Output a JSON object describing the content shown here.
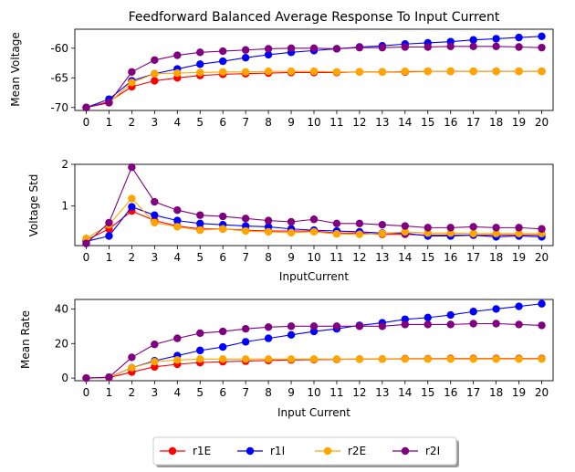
{
  "chart_data": [
    {
      "type": "line",
      "title": "Feedforward Balanced Average Response To Input Current",
      "xlabel": "",
      "ylabel": "Mean Voltage",
      "x": [
        0,
        1,
        2,
        3,
        4,
        5,
        6,
        7,
        8,
        9,
        10,
        11,
        12,
        13,
        14,
        15,
        16,
        17,
        18,
        19,
        20
      ],
      "ylim": [
        -70.5,
        -56.8
      ],
      "yticks": [
        -70,
        -65,
        -60
      ],
      "series": [
        {
          "name": "r1E",
          "color": "#ff0000",
          "values": [
            -70.0,
            -69.0,
            -66.5,
            -65.5,
            -65.0,
            -64.6,
            -64.4,
            -64.3,
            -64.2,
            -64.1,
            -64.1,
            -64.1,
            -64.0,
            -64.0,
            -64.0,
            -63.9,
            -63.9,
            -63.9,
            -63.9,
            -63.9,
            -63.9
          ]
        },
        {
          "name": "r1I",
          "color": "#0000ff",
          "values": [
            -70.0,
            -68.6,
            -65.5,
            -64.3,
            -63.5,
            -62.7,
            -62.2,
            -61.6,
            -61.1,
            -60.7,
            -60.4,
            -60.1,
            -59.8,
            -59.6,
            -59.3,
            -59.1,
            -58.9,
            -58.6,
            -58.4,
            -58.2,
            -58.0
          ]
        },
        {
          "name": "r2E",
          "color": "#ffa500",
          "values": [
            -70.0,
            -69.2,
            -65.8,
            -64.3,
            -64.2,
            -64.1,
            -64.0,
            -64.0,
            -63.9,
            -63.9,
            -63.9,
            -64.0,
            -64.0,
            -64.0,
            -63.9,
            -63.9,
            -63.9,
            -63.9,
            -63.9,
            -63.9,
            -63.9
          ]
        },
        {
          "name": "r2I",
          "color": "#800080",
          "values": [
            -70.0,
            -69.2,
            -64.0,
            -62.0,
            -61.2,
            -60.7,
            -60.5,
            -60.3,
            -60.1,
            -60.0,
            -60.0,
            -60.1,
            -59.9,
            -59.9,
            -59.8,
            -59.8,
            -59.7,
            -59.7,
            -59.7,
            -59.8,
            -59.9
          ]
        }
      ]
    },
    {
      "type": "line",
      "title": "",
      "xlabel": "InputCurrent",
      "ylabel": "Voltage Std",
      "x": [
        0,
        1,
        2,
        3,
        4,
        5,
        6,
        7,
        8,
        9,
        10,
        11,
        12,
        13,
        14,
        15,
        16,
        17,
        18,
        19,
        20
      ],
      "ylim": [
        0.05,
        2.0
      ],
      "yticks": [
        1,
        2
      ],
      "series": [
        {
          "name": "r1E",
          "color": "#ff0000",
          "values": [
            0.18,
            0.45,
            0.88,
            0.65,
            0.52,
            0.45,
            0.45,
            0.42,
            0.4,
            0.4,
            0.4,
            0.35,
            0.35,
            0.32,
            0.32,
            0.3,
            0.3,
            0.3,
            0.3,
            0.3,
            0.3
          ]
        },
        {
          "name": "r1I",
          "color": "#0000ff",
          "values": [
            0.15,
            0.28,
            0.98,
            0.78,
            0.65,
            0.58,
            0.55,
            0.52,
            0.5,
            0.45,
            0.42,
            0.4,
            0.38,
            0.35,
            0.35,
            0.28,
            0.28,
            0.3,
            0.26,
            0.28,
            0.26
          ]
        },
        {
          "name": "r2E",
          "color": "#ffa500",
          "values": [
            0.22,
            0.55,
            1.18,
            0.6,
            0.5,
            0.42,
            0.45,
            0.4,
            0.38,
            0.36,
            0.38,
            0.33,
            0.32,
            0.34,
            0.38,
            0.35,
            0.35,
            0.34,
            0.34,
            0.34,
            0.34
          ]
        },
        {
          "name": "r2I",
          "color": "#800080",
          "values": [
            0.1,
            0.6,
            1.93,
            1.1,
            0.9,
            0.78,
            0.75,
            0.7,
            0.65,
            0.62,
            0.68,
            0.58,
            0.58,
            0.55,
            0.52,
            0.48,
            0.48,
            0.5,
            0.48,
            0.48,
            0.45
          ]
        }
      ]
    },
    {
      "type": "line",
      "title": "",
      "xlabel": "Input Current",
      "ylabel": "Mean Rate",
      "x": [
        0,
        1,
        2,
        3,
        4,
        5,
        6,
        7,
        8,
        9,
        10,
        11,
        12,
        13,
        14,
        15,
        16,
        17,
        18,
        19,
        20
      ],
      "ylim": [
        -1.5,
        45.5
      ],
      "yticks": [
        0,
        20,
        40
      ],
      "series": [
        {
          "name": "r1E",
          "color": "#ff0000",
          "values": [
            0,
            0.3,
            3.5,
            6.5,
            8.0,
            9.0,
            9.5,
            9.8,
            10.2,
            10.5,
            10.7,
            10.8,
            11.0,
            11.0,
            11.2,
            11.2,
            11.3,
            11.3,
            11.3,
            11.3,
            11.3
          ]
        },
        {
          "name": "r1I",
          "color": "#0000ff",
          "values": [
            0,
            0.5,
            6.0,
            10.0,
            13.0,
            16.0,
            18.0,
            21.0,
            23.0,
            25.0,
            27.0,
            28.5,
            30.5,
            32.0,
            34.0,
            35.0,
            36.5,
            38.5,
            40.0,
            41.5,
            43.0
          ]
        },
        {
          "name": "r2E",
          "color": "#ffa500",
          "values": [
            0,
            0.5,
            6.0,
            9.5,
            10.5,
            11.0,
            11.0,
            11.0,
            11.0,
            11.0,
            11.0,
            11.0,
            11.0,
            11.0,
            11.0,
            11.0,
            11.0,
            11.0,
            11.0,
            11.0,
            11.0
          ]
        },
        {
          "name": "r2I",
          "color": "#800080",
          "values": [
            0,
            0.5,
            12.0,
            19.5,
            23.0,
            26.0,
            27.0,
            28.5,
            29.5,
            30.0,
            30.0,
            30.0,
            30.0,
            30.0,
            31.0,
            31.0,
            31.0,
            31.5,
            31.5,
            31.0,
            30.5
          ]
        }
      ]
    }
  ],
  "legend": {
    "placement": "bottom-center",
    "entries": [
      {
        "label": "r1E",
        "color": "#ff0000"
      },
      {
        "label": "r1I",
        "color": "#0000ff"
      },
      {
        "label": "r2E",
        "color": "#ffa500"
      },
      {
        "label": "r2I",
        "color": "#800080"
      }
    ]
  }
}
